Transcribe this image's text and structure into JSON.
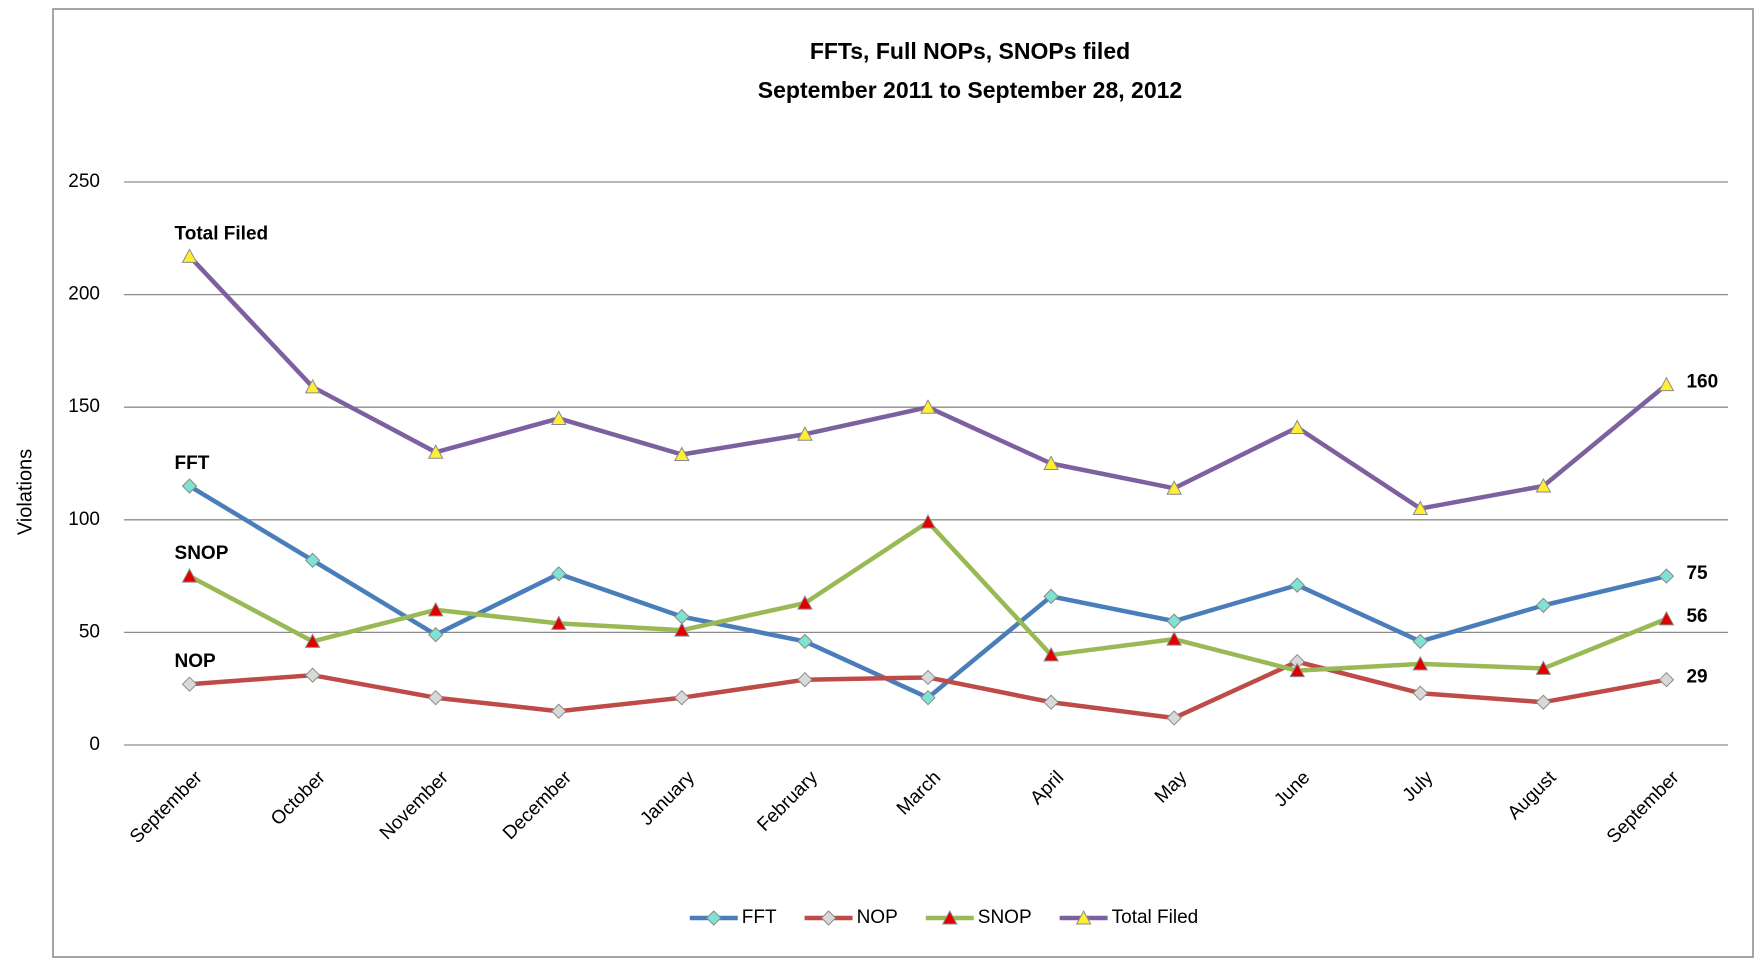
{
  "chart_data": {
    "type": "line",
    "title": "FFTs, Full NOPs, SNOPs filed",
    "subtitle": "September 2011 to September 28, 2012",
    "y_label": "Violations",
    "categories": [
      "September",
      "October",
      "November",
      "December",
      "January",
      "February",
      "March",
      "April",
      "May",
      "June",
      "July",
      "August",
      "September"
    ],
    "series": [
      {
        "name": "FFT",
        "color": "#4a7ebb",
        "marker": "diamond",
        "marker_color": "#7fe3d4",
        "values": [
          115,
          82,
          49,
          76,
          57,
          46,
          21,
          66,
          55,
          71,
          46,
          62,
          75
        ]
      },
      {
        "name": "NOP",
        "color": "#be4b48",
        "marker": "diamond",
        "marker_color": "#d9d9d9",
        "values": [
          27,
          31,
          21,
          15,
          21,
          29,
          30,
          19,
          12,
          37,
          23,
          19,
          29
        ]
      },
      {
        "name": "SNOP",
        "color": "#98b954",
        "marker": "triangle",
        "marker_color": "#e00000",
        "values": [
          75,
          46,
          60,
          54,
          51,
          63,
          99,
          40,
          47,
          33,
          36,
          34,
          56
        ]
      },
      {
        "name": "Total Filed",
        "color": "#7d60a0",
        "marker": "triangle",
        "marker_color": "#ffee33",
        "values": [
          217,
          159,
          130,
          145,
          129,
          138,
          150,
          125,
          114,
          141,
          105,
          115,
          160
        ]
      }
    ],
    "ylim": [
      0,
      250
    ],
    "yticks": [
      0,
      50,
      100,
      150,
      200,
      250
    ],
    "grid": true,
    "legend": "bottom"
  }
}
